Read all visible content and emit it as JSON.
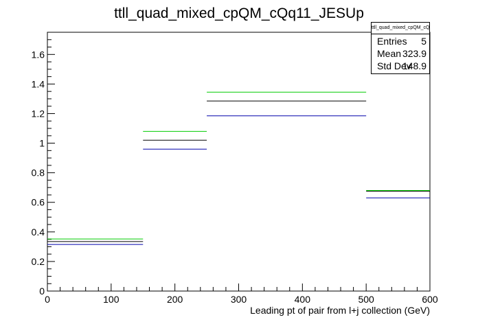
{
  "chart_data": {
    "type": "histogram",
    "title": "ttll_quad_mixed_cpQM_cQq11_JESUp",
    "xlabel": "Leading pt of pair from l+j collection (GeV)",
    "ylabel": "",
    "xlim": [
      0,
      600
    ],
    "ylim": [
      0,
      1.75
    ],
    "x_ticks": [
      0,
      100,
      200,
      300,
      400,
      500,
      600
    ],
    "y_ticks": [
      0,
      0.2,
      0.4,
      0.6,
      0.8,
      1,
      1.2,
      1.4,
      1.6
    ],
    "bin_edges": [
      0,
      150,
      250,
      500,
      600
    ],
    "series": [
      {
        "color": "#000000",
        "values": [
          0.335,
          1.02,
          1.285,
          0.675
        ]
      },
      {
        "color": "#00cc00",
        "values": [
          0.352,
          1.08,
          1.345,
          0.68
        ]
      },
      {
        "color": "#0000aa",
        "values": [
          0.315,
          0.96,
          1.185,
          0.63
        ]
      }
    ],
    "stats": {
      "title": "ttll_quad_mixed_cpQM_cQq11_JESUp",
      "rows": [
        {
          "label": "Entries",
          "value": "5"
        },
        {
          "label": "Mean",
          "value": "323.9"
        },
        {
          "label": "Std Dev",
          "value": "148.9"
        }
      ]
    }
  }
}
